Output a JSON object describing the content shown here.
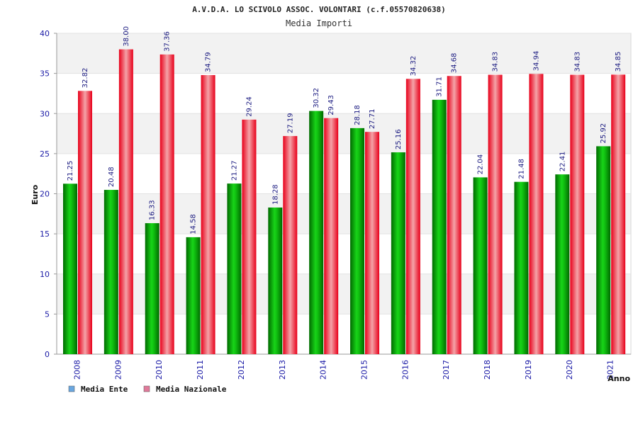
{
  "chart_data": {
    "type": "bar",
    "title": "A.V.D.A. LO SCIVOLO ASSOC. VOLONTARI (c.f.05570820638)",
    "subtitle": "Media Importi",
    "xlabel": "Anno",
    "ylabel": "Euro",
    "ylim": [
      0,
      40
    ],
    "yticks": [
      0,
      5,
      10,
      15,
      20,
      25,
      30,
      35,
      40
    ],
    "grid": true,
    "legend_position": "bottom-left",
    "categories": [
      "2008",
      "2009",
      "2010",
      "2011",
      "2012",
      "2013",
      "2014",
      "2015",
      "2016",
      "2017",
      "2018",
      "2019",
      "2020",
      "2021"
    ],
    "series": [
      {
        "name": "Media Ente",
        "legend_color": "#6aa7e0",
        "bar_color": "#0fbf0f",
        "values": [
          21.25,
          20.48,
          16.33,
          14.58,
          21.27,
          18.28,
          30.32,
          28.18,
          25.16,
          31.71,
          22.04,
          21.48,
          22.41,
          25.92
        ],
        "labels": [
          "21.25",
          "20.48",
          "16.33",
          "14.58",
          "21.27",
          "18.28",
          "30.32",
          "28.18",
          "25.16",
          "31.71",
          "22.04",
          "21.48",
          "22.41",
          "25.92"
        ]
      },
      {
        "name": "Media Nazionale",
        "legend_color": "#e07a9a",
        "bar_color": "#ee1c2c",
        "values": [
          32.82,
          38.0,
          37.36,
          34.79,
          29.24,
          27.19,
          29.43,
          27.71,
          34.32,
          34.68,
          34.83,
          34.94,
          34.83,
          34.85
        ],
        "labels": [
          "32.82",
          "38.00",
          "37.36",
          "34.79",
          "29.24",
          "27.19",
          "29.43",
          "27.71",
          "34.32",
          "34.68",
          "34.83",
          "34.94",
          "34.83",
          "34.85"
        ]
      }
    ]
  }
}
